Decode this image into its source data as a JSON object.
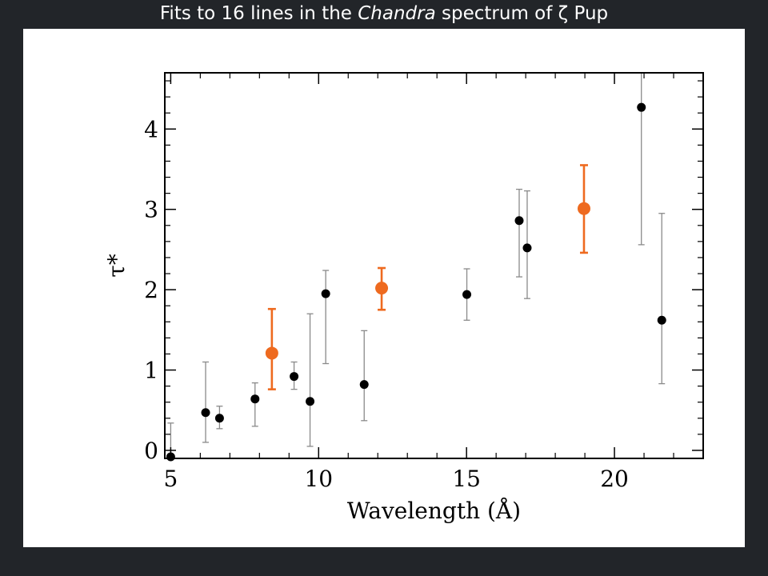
{
  "title": {
    "prefix": "Fits to 16 lines in the ",
    "italic": "Chandra",
    "suffix": " spectrum of ζ Pup"
  },
  "chart_data": {
    "type": "scatter",
    "title": "Fits to 16 lines in the Chandra spectrum of ζ Pup",
    "xlabel": "Wavelength (Å)",
    "ylabel": "τ*",
    "xlim": [
      4.8,
      23.0
    ],
    "ylim": [
      -0.1,
      4.7
    ],
    "xticks": [
      5,
      10,
      15,
      20
    ],
    "yticks": [
      0,
      1,
      2,
      3,
      4
    ],
    "grid": false,
    "series": [
      {
        "color": "#000000",
        "points": [
          {
            "x": 5.0,
            "y": -0.08,
            "lo": -0.1,
            "hi": 0.34
          },
          {
            "x": 6.18,
            "y": 0.47,
            "lo": 0.1,
            "hi": 1.1
          },
          {
            "x": 6.65,
            "y": 0.4,
            "lo": 0.27,
            "hi": 0.55
          },
          {
            "x": 7.85,
            "y": 0.64,
            "lo": 0.3,
            "hi": 0.84
          },
          {
            "x": 9.17,
            "y": 0.92,
            "lo": 0.76,
            "hi": 1.1
          },
          {
            "x": 9.71,
            "y": 0.61,
            "lo": 0.05,
            "hi": 1.7
          },
          {
            "x": 10.24,
            "y": 1.95,
            "lo": 1.08,
            "hi": 2.24
          },
          {
            "x": 11.54,
            "y": 0.82,
            "lo": 0.37,
            "hi": 1.49
          },
          {
            "x": 15.01,
            "y": 1.94,
            "lo": 1.62,
            "hi": 2.26
          },
          {
            "x": 16.78,
            "y": 2.86,
            "lo": 2.16,
            "hi": 3.25
          },
          {
            "x": 17.05,
            "y": 2.52,
            "lo": 1.89,
            "hi": 3.23
          },
          {
            "x": 20.91,
            "y": 4.27,
            "lo": 2.56,
            "hi": 4.7
          },
          {
            "x": 21.6,
            "y": 1.62,
            "lo": 0.83,
            "hi": 2.95
          }
        ]
      },
      {
        "color": "#ee6a1f",
        "points": [
          {
            "x": 8.42,
            "y": 1.21,
            "lo": 0.76,
            "hi": 1.76
          },
          {
            "x": 12.13,
            "y": 2.02,
            "lo": 1.75,
            "hi": 2.27
          },
          {
            "x": 18.97,
            "y": 3.01,
            "lo": 2.46,
            "hi": 3.55
          }
        ]
      }
    ]
  }
}
